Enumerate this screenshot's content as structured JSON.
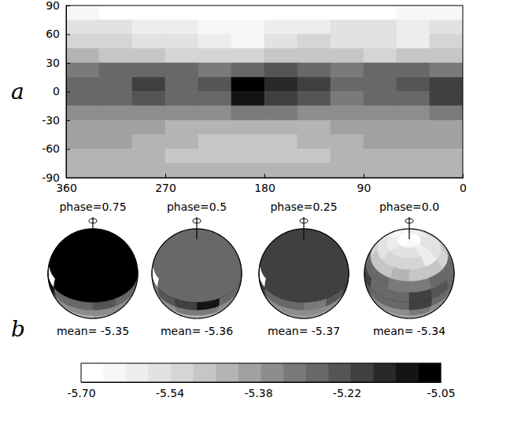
{
  "chart_data": {
    "type": "heatmap",
    "panel_labels": [
      "a",
      "b"
    ],
    "xlim": [
      360,
      0
    ],
    "xticks": [
      360,
      270,
      180,
      90,
      0
    ],
    "ylim": [
      -90,
      90
    ],
    "yticks": [
      -90,
      -60,
      -30,
      0,
      30,
      60,
      90
    ],
    "x_bins": [
      360,
      330,
      300,
      270,
      240,
      210,
      180,
      150,
      120,
      90,
      60,
      30,
      0
    ],
    "y_bins": [
      90,
      75,
      60,
      45,
      30,
      15,
      0,
      -15,
      -30,
      -45,
      -60,
      -75,
      -90
    ],
    "cells": [
      [
        -5.64,
        -5.66,
        -5.67,
        -5.68,
        -5.67,
        -5.66,
        -5.66,
        -5.67,
        -5.68,
        -5.66,
        -5.65,
        -5.64
      ],
      [
        -5.55,
        -5.56,
        -5.58,
        -5.6,
        -5.62,
        -5.65,
        -5.6,
        -5.58,
        -5.57,
        -5.55,
        -5.58,
        -5.56
      ],
      [
        -5.5,
        -5.52,
        -5.55,
        -5.56,
        -5.6,
        -5.62,
        -5.56,
        -5.5,
        -5.54,
        -5.57,
        -5.6,
        -5.52
      ],
      [
        -5.45,
        -5.47,
        -5.48,
        -5.5,
        -5.52,
        -5.5,
        -5.48,
        -5.46,
        -5.48,
        -5.5,
        -5.49,
        -5.46
      ],
      [
        -5.3,
        -5.29,
        -5.28,
        -5.27,
        -5.3,
        -5.27,
        -5.25,
        -5.28,
        -5.3,
        -5.29,
        -5.28,
        -5.3
      ],
      [
        -5.27,
        -5.26,
        -5.18,
        -5.26,
        -5.24,
        -5.08,
        -5.14,
        -5.2,
        -5.28,
        -5.27,
        -5.25,
        -5.18
      ],
      [
        -5.29,
        -5.28,
        -5.22,
        -5.28,
        -5.26,
        -5.12,
        -5.18,
        -5.25,
        -5.3,
        -5.29,
        -5.26,
        -5.2
      ],
      [
        -5.34,
        -5.35,
        -5.34,
        -5.36,
        -5.36,
        -5.32,
        -5.33,
        -5.35,
        -5.36,
        -5.35,
        -5.34,
        -5.33
      ],
      [
        -5.38,
        -5.4,
        -5.41,
        -5.43,
        -5.44,
        -5.44,
        -5.43,
        -5.42,
        -5.4,
        -5.39,
        -5.38,
        -5.38
      ],
      [
        -5.4,
        -5.41,
        -5.43,
        -5.45,
        -5.46,
        -5.47,
        -5.46,
        -5.44,
        -5.42,
        -5.41,
        -5.4,
        -5.4
      ],
      [
        -5.42,
        -5.43,
        -5.45,
        -5.47,
        -5.48,
        -5.48,
        -5.48,
        -5.46,
        -5.44,
        -5.43,
        -5.42,
        -5.42
      ],
      [
        -5.42,
        -5.42,
        -5.43,
        -5.44,
        -5.44,
        -5.44,
        -5.44,
        -5.43,
        -5.43,
        -5.42,
        -5.42,
        -5.42
      ]
    ],
    "spheres": [
      {
        "phase": 0.75,
        "phase_label": "phase=0.75",
        "mean_label": "mean= -5.35"
      },
      {
        "phase": 0.5,
        "phase_label": "phase=0.5",
        "mean_label": "mean= -5.36"
      },
      {
        "phase": 0.25,
        "phase_label": "phase=0.25",
        "mean_label": "mean= -5.37"
      },
      {
        "phase": 0,
        "phase_label": "phase=0.0",
        "mean_label": "mean= -5.34"
      }
    ],
    "colorbar": {
      "range": [
        -5.7,
        -5.05
      ],
      "ticks": [
        {
          "value": -5.7,
          "label": "-5.70"
        },
        -5.54,
        -5.38,
        -5.22,
        -5.05
      ]
    }
  }
}
